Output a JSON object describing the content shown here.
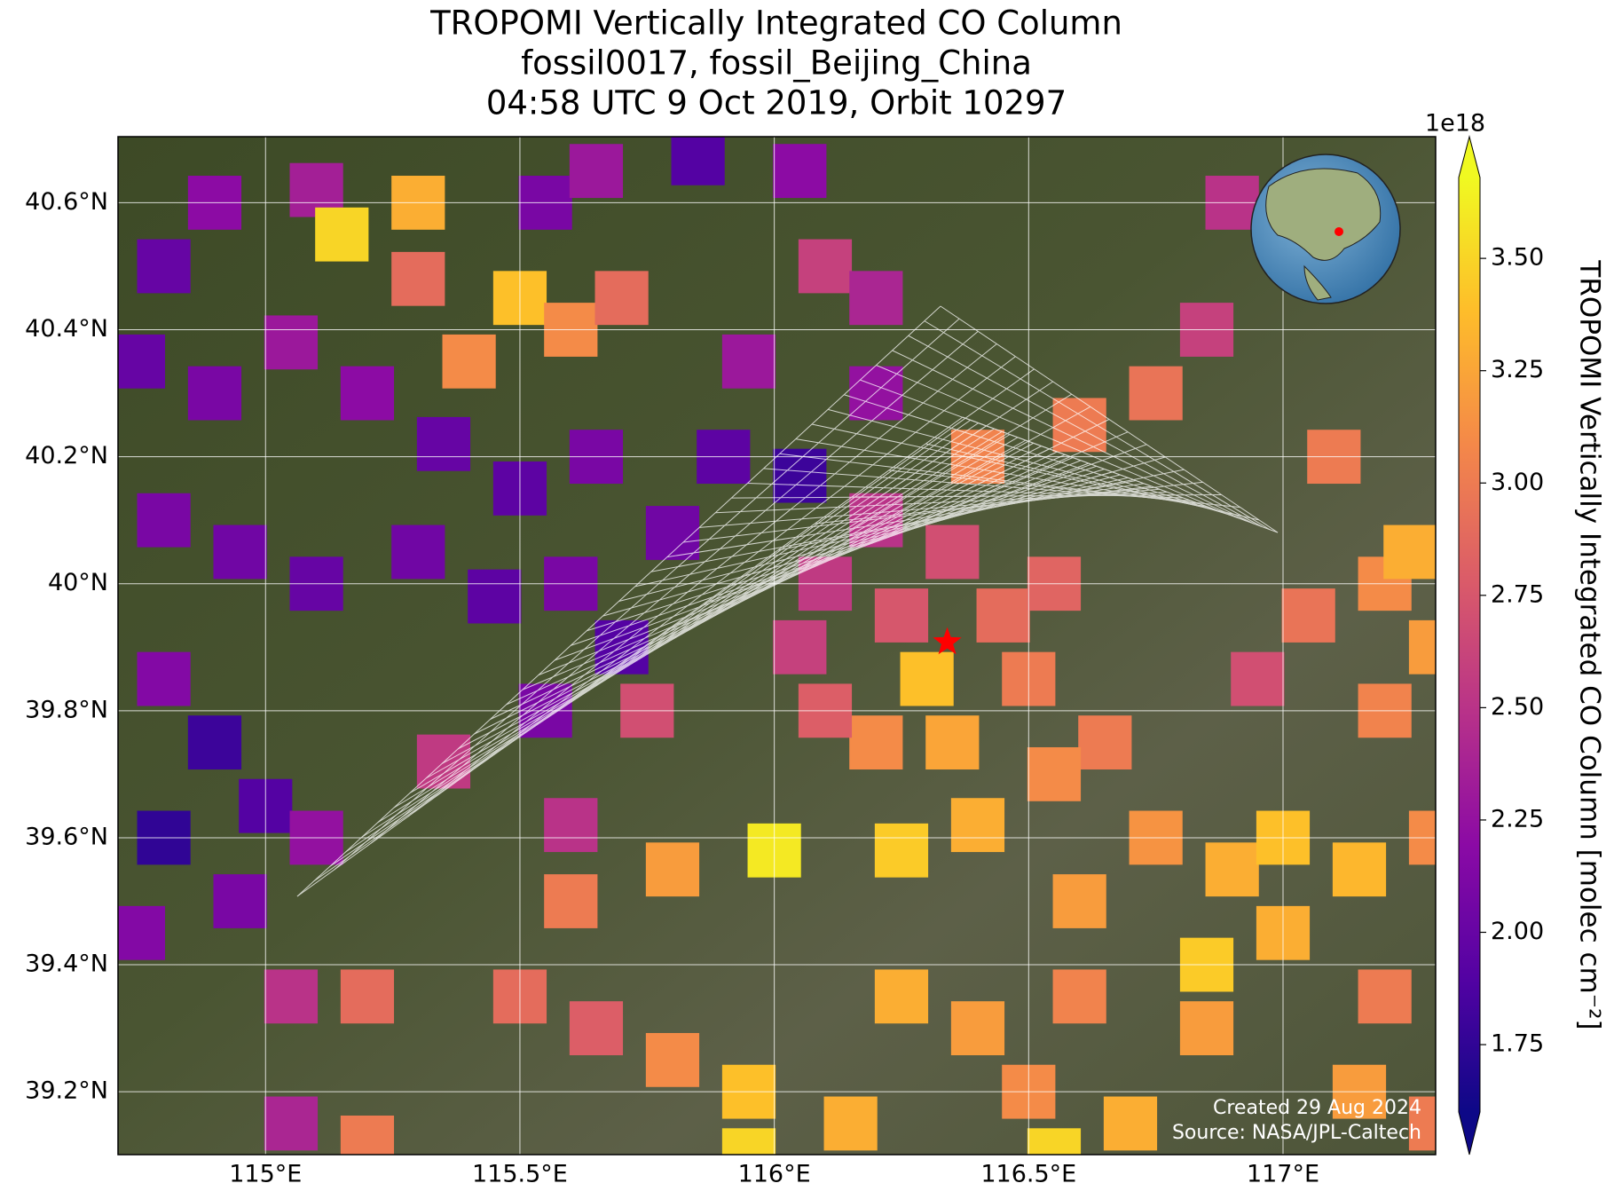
{
  "chart_data": {
    "type": "map",
    "title_lines": [
      "TROPOMI Vertically Integrated CO Column",
      "fossil0017, fossil_Beijing_China",
      "04:58 UTC 9 Oct 2019, Orbit 10297"
    ],
    "xlim": [
      114.71,
      117.3
    ],
    "ylim": [
      39.101,
      40.704
    ],
    "xticks": [
      {
        "value": 115,
        "label": "115°E"
      },
      {
        "value": 115.5,
        "label": "115.5°E"
      },
      {
        "value": 116,
        "label": "116°E"
      },
      {
        "value": 116.5,
        "label": "116.5°E"
      },
      {
        "value": 117,
        "label": "117°E"
      }
    ],
    "yticks": [
      {
        "value": 39.2,
        "label": "39.2°N"
      },
      {
        "value": 39.4,
        "label": "39.4°N"
      },
      {
        "value": 39.6,
        "label": "39.6°N"
      },
      {
        "value": 39.8,
        "label": "39.8°N"
      },
      {
        "value": 40,
        "label": "40°N"
      },
      {
        "value": 40.2,
        "label": "40.2°N"
      },
      {
        "value": 40.4,
        "label": "40.4°N"
      },
      {
        "value": 40.6,
        "label": "40.6°N"
      }
    ],
    "grid": true,
    "colorbar": {
      "label": "TROPOMI Vertically Integrated CO Column [molec cm⁻²]",
      "exponent": "1e18",
      "colormap": "plasma",
      "clim": [
        1.6,
        3.68
      ],
      "extend": "both",
      "ticks": [
        {
          "value": 1.75,
          "label": "1.75"
        },
        {
          "value": 2.0,
          "label": "2.00"
        },
        {
          "value": 2.25,
          "label": "2.25"
        },
        {
          "value": 2.5,
          "label": "2.50"
        },
        {
          "value": 2.75,
          "label": "2.75"
        },
        {
          "value": 3.0,
          "label": "3.00"
        },
        {
          "value": 3.25,
          "label": "3.25"
        },
        {
          "value": 3.5,
          "label": "3.50"
        }
      ]
    },
    "site": {
      "lon": 116.34,
      "lat": 39.908,
      "color": "#ff0000"
    },
    "credits": [
      "Created 29 Aug 2024",
      "Source: NASA/JPL-Caltech"
    ],
    "cells": [
      [
        114.8,
        40.5,
        2.0
      ],
      [
        114.9,
        40.6,
        2.2
      ],
      [
        115.1,
        40.62,
        2.35
      ],
      [
        115.15,
        40.55,
        3.5
      ],
      [
        115.3,
        40.6,
        3.3
      ],
      [
        115.3,
        40.48,
        2.9
      ],
      [
        115.4,
        40.35,
        3.1
      ],
      [
        115.5,
        40.45,
        3.4
      ],
      [
        115.6,
        40.4,
        3.1
      ],
      [
        115.7,
        40.45,
        2.9
      ],
      [
        115.55,
        40.6,
        2.1
      ],
      [
        115.65,
        40.65,
        2.3
      ],
      [
        115.85,
        40.67,
        1.9
      ],
      [
        116.05,
        40.65,
        2.2
      ],
      [
        114.75,
        40.35,
        2.0
      ],
      [
        114.9,
        40.3,
        2.1
      ],
      [
        115.05,
        40.38,
        2.3
      ],
      [
        115.2,
        40.3,
        2.2
      ],
      [
        115.35,
        40.22,
        2.0
      ],
      [
        115.5,
        40.15,
        1.95
      ],
      [
        115.65,
        40.2,
        2.1
      ],
      [
        115.8,
        40.08,
        2.05
      ],
      [
        115.9,
        40.2,
        1.95
      ],
      [
        116.05,
        40.17,
        1.8
      ],
      [
        116.2,
        40.3,
        2.25
      ],
      [
        115.95,
        40.35,
        2.3
      ],
      [
        116.1,
        40.5,
        2.6
      ],
      [
        116.2,
        40.45,
        2.4
      ],
      [
        114.8,
        40.1,
        2.1
      ],
      [
        114.95,
        40.05,
        2.05
      ],
      [
        115.1,
        40.0,
        2.0
      ],
      [
        115.3,
        40.05,
        2.05
      ],
      [
        115.45,
        39.98,
        1.95
      ],
      [
        115.6,
        40.0,
        2.1
      ],
      [
        115.7,
        39.9,
        1.9
      ],
      [
        114.8,
        39.85,
        2.15
      ],
      [
        114.9,
        39.75,
        1.8
      ],
      [
        114.8,
        39.6,
        1.75
      ],
      [
        115.0,
        39.65,
        1.9
      ],
      [
        115.1,
        39.6,
        2.25
      ],
      [
        114.75,
        39.45,
        2.15
      ],
      [
        114.95,
        39.5,
        2.1
      ],
      [
        115.05,
        39.35,
        2.5
      ],
      [
        115.55,
        39.8,
        2.1
      ],
      [
        115.75,
        39.8,
        2.7
      ],
      [
        115.35,
        39.72,
        2.55
      ],
      [
        115.6,
        39.62,
        2.5
      ],
      [
        115.2,
        39.35,
        2.9
      ],
      [
        115.05,
        39.15,
        2.4
      ],
      [
        115.2,
        39.12,
        3.0
      ],
      [
        116.05,
        39.9,
        2.6
      ],
      [
        116.1,
        40.0,
        2.55
      ],
      [
        116.2,
        40.1,
        2.5
      ],
      [
        116.25,
        39.95,
        2.75
      ],
      [
        116.35,
        40.05,
        2.7
      ],
      [
        116.3,
        39.85,
        3.4
      ],
      [
        116.35,
        39.75,
        3.25
      ],
      [
        116.2,
        39.75,
        3.1
      ],
      [
        116.1,
        39.8,
        2.8
      ],
      [
        116.45,
        39.95,
        2.9
      ],
      [
        116.55,
        40.0,
        2.85
      ],
      [
        116.5,
        39.85,
        3.0
      ],
      [
        116.4,
        40.2,
        3.05
      ],
      [
        116.6,
        40.25,
        3.0
      ],
      [
        116.75,
        40.3,
        2.95
      ],
      [
        116.85,
        40.4,
        2.6
      ],
      [
        116.9,
        40.6,
        2.5
      ],
      [
        116.65,
        39.75,
        3.0
      ],
      [
        116.55,
        39.7,
        3.1
      ],
      [
        116.4,
        39.62,
        3.3
      ],
      [
        116.25,
        39.58,
        3.45
      ],
      [
        116.0,
        39.58,
        3.6
      ],
      [
        115.8,
        39.55,
        3.2
      ],
      [
        115.6,
        39.5,
        3.0
      ],
      [
        115.5,
        39.35,
        2.9
      ],
      [
        115.65,
        39.3,
        2.8
      ],
      [
        115.8,
        39.25,
        3.1
      ],
      [
        115.95,
        39.2,
        3.4
      ],
      [
        115.95,
        39.1,
        3.5
      ],
      [
        116.15,
        39.15,
        3.3
      ],
      [
        116.25,
        39.35,
        3.3
      ],
      [
        116.4,
        39.3,
        3.2
      ],
      [
        116.5,
        39.2,
        3.1
      ],
      [
        116.6,
        39.35,
        3.05
      ],
      [
        116.6,
        39.5,
        3.2
      ],
      [
        116.75,
        39.6,
        3.15
      ],
      [
        116.9,
        39.55,
        3.3
      ],
      [
        117.0,
        39.6,
        3.4
      ],
      [
        117.15,
        39.55,
        3.35
      ],
      [
        117.3,
        39.6,
        3.1
      ],
      [
        117.2,
        39.8,
        3.05
      ],
      [
        117.3,
        39.9,
        3.2
      ],
      [
        117.05,
        39.95,
        2.95
      ],
      [
        117.2,
        40.0,
        3.1
      ],
      [
        117.1,
        40.2,
        3.0
      ],
      [
        117.25,
        40.05,
        3.3
      ],
      [
        116.95,
        39.85,
        2.7
      ],
      [
        117.0,
        39.45,
        3.3
      ],
      [
        116.85,
        39.3,
        3.2
      ],
      [
        117.15,
        39.2,
        3.2
      ],
      [
        117.3,
        39.15,
        3.0
      ],
      [
        116.55,
        39.1,
        3.5
      ],
      [
        116.7,
        39.15,
        3.3
      ],
      [
        116.85,
        39.4,
        3.45
      ],
      [
        117.2,
        39.35,
        3.0
      ]
    ]
  }
}
